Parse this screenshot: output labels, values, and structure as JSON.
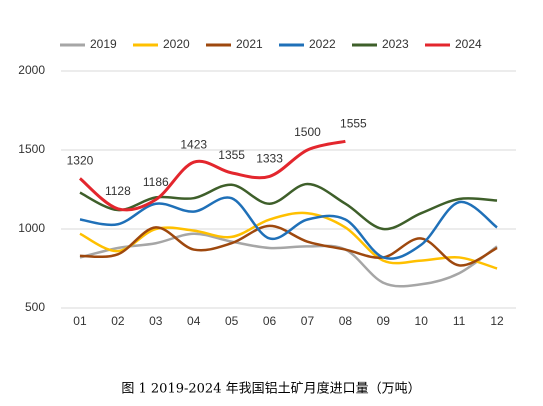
{
  "chart_data": {
    "type": "line",
    "caption": "图 1 2019-2024 年我国铝土矿月度进口量（万吨）",
    "categories": [
      "01",
      "02",
      "03",
      "04",
      "05",
      "06",
      "07",
      "08",
      "09",
      "10",
      "11",
      "12"
    ],
    "series": [
      {
        "name": "2019",
        "color": "#a6a6a6",
        "values": [
          820,
          880,
          910,
          970,
          920,
          880,
          890,
          870,
          660,
          650,
          720,
          890
        ]
      },
      {
        "name": "2020",
        "color": "#ffc000",
        "values": [
          970,
          860,
          1000,
          990,
          950,
          1060,
          1100,
          1010,
          800,
          800,
          820,
          750
        ]
      },
      {
        "name": "2021",
        "color": "#9e480e",
        "values": [
          830,
          840,
          1010,
          870,
          910,
          1020,
          920,
          870,
          820,
          940,
          770,
          880
        ]
      },
      {
        "name": "2022",
        "color": "#1f70b8",
        "values": [
          1060,
          1030,
          1160,
          1110,
          1195,
          940,
          1060,
          1060,
          820,
          900,
          1170,
          1010
        ]
      },
      {
        "name": "2023",
        "color": "#3e5f2a",
        "values": [
          1230,
          1120,
          1200,
          1195,
          1280,
          1160,
          1285,
          1160,
          1000,
          1100,
          1190,
          1180
        ]
      },
      {
        "name": "2024",
        "color": "#e3262d",
        "values": [
          1320,
          1128,
          1186,
          1423,
          1355,
          1333,
          1500,
          1555,
          null,
          null,
          null,
          null
        ]
      }
    ],
    "ylim": [
      500,
      2000
    ],
    "yticks": [
      500,
      1000,
      1500,
      2000
    ],
    "grid": true
  }
}
